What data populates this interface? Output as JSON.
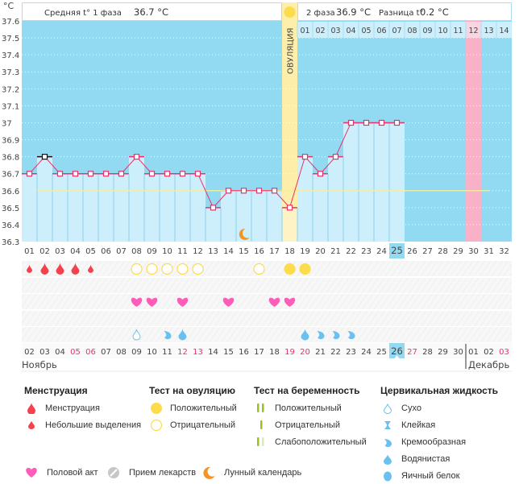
{
  "header": {
    "unit": "°C",
    "phase1_label": "Средняя t° 1 фаза",
    "phase1_value": "36.7 °C",
    "phase2_label": "2 фаза",
    "phase2_value": "36.9 °C",
    "diff_label": "Разница t°",
    "diff_value": "0.2 °C",
    "ovulation_label": "ОВУЛЯЦИЯ"
  },
  "next_cycle_days": [
    "01",
    "02",
    "03",
    "04",
    "05",
    "06",
    "07",
    "08",
    "09",
    "10",
    "11",
    "12",
    "13",
    "14"
  ],
  "chart_data": {
    "type": "line",
    "title": "",
    "xlabel": "День цикла",
    "ylabel": "°C",
    "ylim": [
      36.3,
      37.6
    ],
    "yticks": [
      "37.6",
      "37.5",
      "37.4",
      "37.3",
      "37.2",
      "37.1",
      "37",
      "36.9",
      "36.8",
      "36.7",
      "36.6",
      "36.5",
      "36.4",
      "36.3"
    ],
    "cycle_days": [
      "01",
      "02",
      "03",
      "04",
      "05",
      "06",
      "07",
      "08",
      "09",
      "10",
      "11",
      "12",
      "13",
      "14",
      "15",
      "16",
      "17",
      "18",
      "19",
      "20",
      "21",
      "22",
      "23",
      "24",
      "25",
      "26",
      "27",
      "28",
      "29",
      "30",
      "31",
      "32"
    ],
    "series": [
      {
        "name": "Базальная температура",
        "values": [
          36.7,
          36.8,
          36.7,
          36.7,
          36.7,
          36.7,
          36.7,
          36.8,
          36.7,
          36.7,
          36.7,
          36.7,
          36.5,
          36.6,
          36.6,
          36.6,
          36.6,
          36.5,
          36.8,
          36.7,
          36.8,
          37.0,
          37.0,
          37.0,
          37.0
        ]
      }
    ],
    "cover_line": 36.6,
    "ovulation_day": 18,
    "predicted_period_day": 30,
    "next_cycle_day12_highlight": true,
    "today_cycle_day": 25,
    "selected_point_day": 2,
    "grid": true,
    "calendar_dates": [
      "02",
      "03",
      "04",
      "05",
      "06",
      "07",
      "08",
      "09",
      "10",
      "11",
      "12",
      "13",
      "14",
      "15",
      "16",
      "17",
      "18",
      "19",
      "20",
      "21",
      "22",
      "23",
      "24",
      "25",
      "26",
      "27",
      "28",
      "29",
      "30",
      "01",
      "02",
      "03"
    ],
    "weekend_dates_idx": [
      3,
      4,
      10,
      11,
      17,
      18,
      25,
      31
    ],
    "today_date_idx": 24,
    "month_start_idx": 29,
    "months": [
      "Ноябрь",
      "Декабрь"
    ],
    "menstruation": {
      "1": "light",
      "2": "heavy",
      "3": "heavy",
      "4": "heavy",
      "5": "light"
    },
    "ovulation_test": {
      "8": "negative",
      "9": "negative",
      "10": "negative",
      "11": "negative",
      "12": "negative",
      "16": "negative",
      "18": "positive",
      "19": "positive"
    },
    "intercourse_days": [
      8,
      9,
      11,
      14,
      17,
      18
    ],
    "moon_days": [
      15
    ],
    "cervical_fluid": {
      "8": "dry",
      "10": "creamy",
      "11": "watery",
      "19": "watery",
      "20": "creamy",
      "21": "creamy",
      "22": "creamy"
    }
  },
  "legend": {
    "menstruation": {
      "title": "Менструация",
      "items": [
        {
          "icon": "blood-drop-icon",
          "label": "Менструация"
        },
        {
          "icon": "small-blood-drop-icon",
          "label": "Небольшие выделения"
        }
      ]
    },
    "ovulation_test": {
      "title": "Тест на овуляцию",
      "items": [
        {
          "icon": "filled-circle-icon",
          "label": "Положительный"
        },
        {
          "icon": "empty-circle-icon",
          "label": "Отрицательный"
        }
      ]
    },
    "pregnancy_test": {
      "title": "Тест на беременность",
      "items": [
        {
          "icon": "two-lines-icon",
          "label": "Положительный"
        },
        {
          "icon": "one-line-icon",
          "label": "Отрицательный"
        },
        {
          "icon": "faint-line-icon",
          "label": "Слабоположительный"
        }
      ]
    },
    "cervical_fluid": {
      "title": "Цервикальная жидкость",
      "items": [
        {
          "icon": "dry-drop-icon",
          "label": "Сухо"
        },
        {
          "icon": "sticky-icon",
          "label": "Клейкая"
        },
        {
          "icon": "creamy-icon",
          "label": "Кремообразная"
        },
        {
          "icon": "watery-drop-icon",
          "label": "Водянистая"
        },
        {
          "icon": "egg-white-icon",
          "label": "Яичный белок"
        }
      ]
    },
    "other": [
      {
        "icon": "heart-icon",
        "label": "Половой акт"
      },
      {
        "icon": "pill-icon",
        "label": "Прием лекарств"
      },
      {
        "icon": "moon-icon",
        "label": "Лунный календарь"
      }
    ]
  },
  "colors": {
    "chart_bg": "#92d9f2",
    "bar_fill": "#cdeefb",
    "line": "#e8336a",
    "ovulation_band": "#fdeeaa",
    "period_band": "#f9b1c8",
    "cover_line": "#f5ef9e",
    "blood": "#f4414d",
    "ovu_test": "#fddc4c",
    "heart": "#fd5db8",
    "fluid": "#6ac1ef",
    "weekend": "#e8336a",
    "preg_test": "#9ac21f",
    "moon": "#f7931e"
  }
}
